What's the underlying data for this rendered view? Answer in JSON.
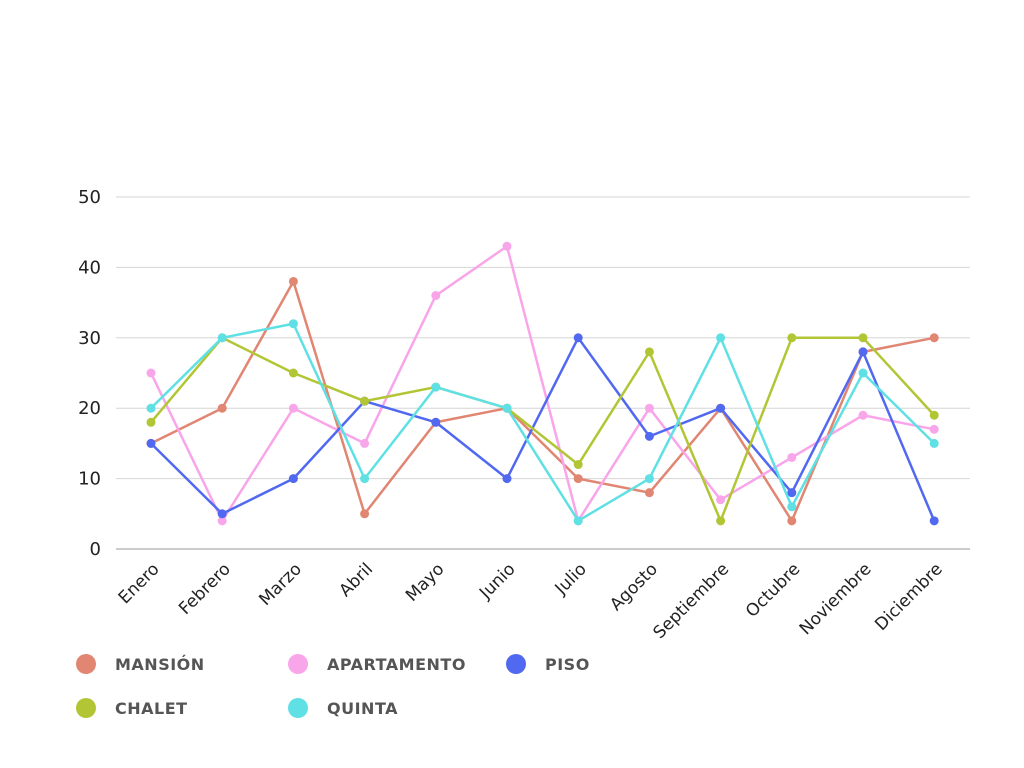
{
  "chart_data": {
    "type": "line",
    "categories": [
      "Enero",
      "Febrero",
      "Marzo",
      "Abril",
      "Mayo",
      "Junio",
      "Julio",
      "Agosto",
      "Septiembre",
      "Octubre",
      "Noviembre",
      "Diciembre"
    ],
    "series": [
      {
        "name": "MANSIÓN",
        "color": "#e08672",
        "values": [
          15,
          20,
          38,
          5,
          18,
          20,
          10,
          8,
          20,
          4,
          28,
          30
        ]
      },
      {
        "name": "APARTAMENTO",
        "color": "#f9a5ea",
        "values": [
          25,
          4,
          20,
          15,
          36,
          43,
          4,
          20,
          7,
          13,
          19,
          17
        ]
      },
      {
        "name": "PISO",
        "color": "#5169f0",
        "values": [
          15,
          5,
          10,
          21,
          18,
          10,
          30,
          16,
          20,
          8,
          28,
          4
        ]
      },
      {
        "name": "CHALET",
        "color": "#b2c635",
        "values": [
          18,
          30,
          25,
          21,
          23,
          20,
          12,
          28,
          4,
          30,
          30,
          19
        ]
      },
      {
        "name": "QUINTA",
        "color": "#5fe0e4",
        "values": [
          20,
          30,
          32,
          10,
          23,
          20,
          4,
          10,
          30,
          6,
          25,
          15
        ]
      }
    ],
    "yticks": [
      "0",
      "10",
      "20",
      "30",
      "40",
      "50"
    ],
    "ylim": [
      0,
      50
    ],
    "grid": true,
    "legend_position": "bottom-left",
    "title": "",
    "xlabel": "",
    "ylabel": ""
  }
}
